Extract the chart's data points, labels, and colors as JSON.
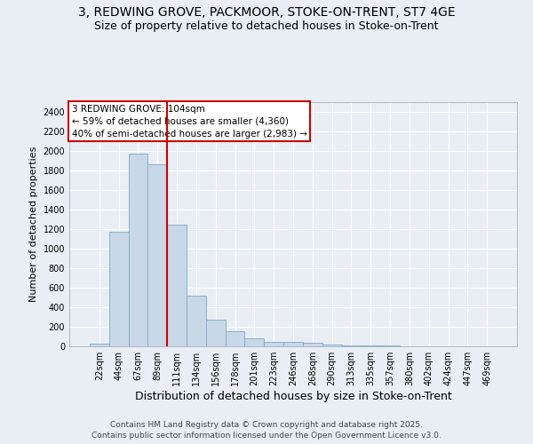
{
  "title_line1": "3, REDWING GROVE, PACKMOOR, STOKE-ON-TRENT, ST7 4GE",
  "title_line2": "Size of property relative to detached houses in Stoke-on-Trent",
  "xlabel": "Distribution of detached houses by size in Stoke-on-Trent",
  "ylabel": "Number of detached properties",
  "categories": [
    "22sqm",
    "44sqm",
    "67sqm",
    "89sqm",
    "111sqm",
    "134sqm",
    "156sqm",
    "178sqm",
    "201sqm",
    "223sqm",
    "246sqm",
    "268sqm",
    "290sqm",
    "313sqm",
    "335sqm",
    "357sqm",
    "380sqm",
    "402sqm",
    "424sqm",
    "447sqm",
    "469sqm"
  ],
  "values": [
    25,
    1170,
    1970,
    1860,
    1250,
    520,
    270,
    155,
    80,
    45,
    45,
    35,
    15,
    10,
    5,
    5,
    3,
    3,
    3,
    3,
    3
  ],
  "bar_color": "#c8d8e8",
  "bar_edge_color": "#8aafc8",
  "bar_edge_width": 0.7,
  "vline_color": "#cc0000",
  "vline_pos": 3.5,
  "annotation_line1": "3 REDWING GROVE: 104sqm",
  "annotation_line2": "← 59% of detached houses are smaller (4,360)",
  "annotation_line3": "40% of semi-detached houses are larger (2,983) →",
  "annotation_box_facecolor": "#ffffff",
  "annotation_box_edgecolor": "#cc0000",
  "ylim": [
    0,
    2500
  ],
  "yticks": [
    0,
    200,
    400,
    600,
    800,
    1000,
    1200,
    1400,
    1600,
    1800,
    2000,
    2200,
    2400
  ],
  "fig_facecolor": "#e8eef4",
  "plot_facecolor": "#e8eef4",
  "grid_color": "#ffffff",
  "title_fontsize": 10,
  "subtitle_fontsize": 9,
  "ylabel_fontsize": 8,
  "xlabel_fontsize": 9,
  "tick_fontsize": 7,
  "annotation_fontsize": 7.5,
  "footer_fontsize": 6.5,
  "footer_line1": "Contains HM Land Registry data © Crown copyright and database right 2025.",
  "footer_line2": "Contains public sector information licensed under the Open Government Licence v3.0."
}
